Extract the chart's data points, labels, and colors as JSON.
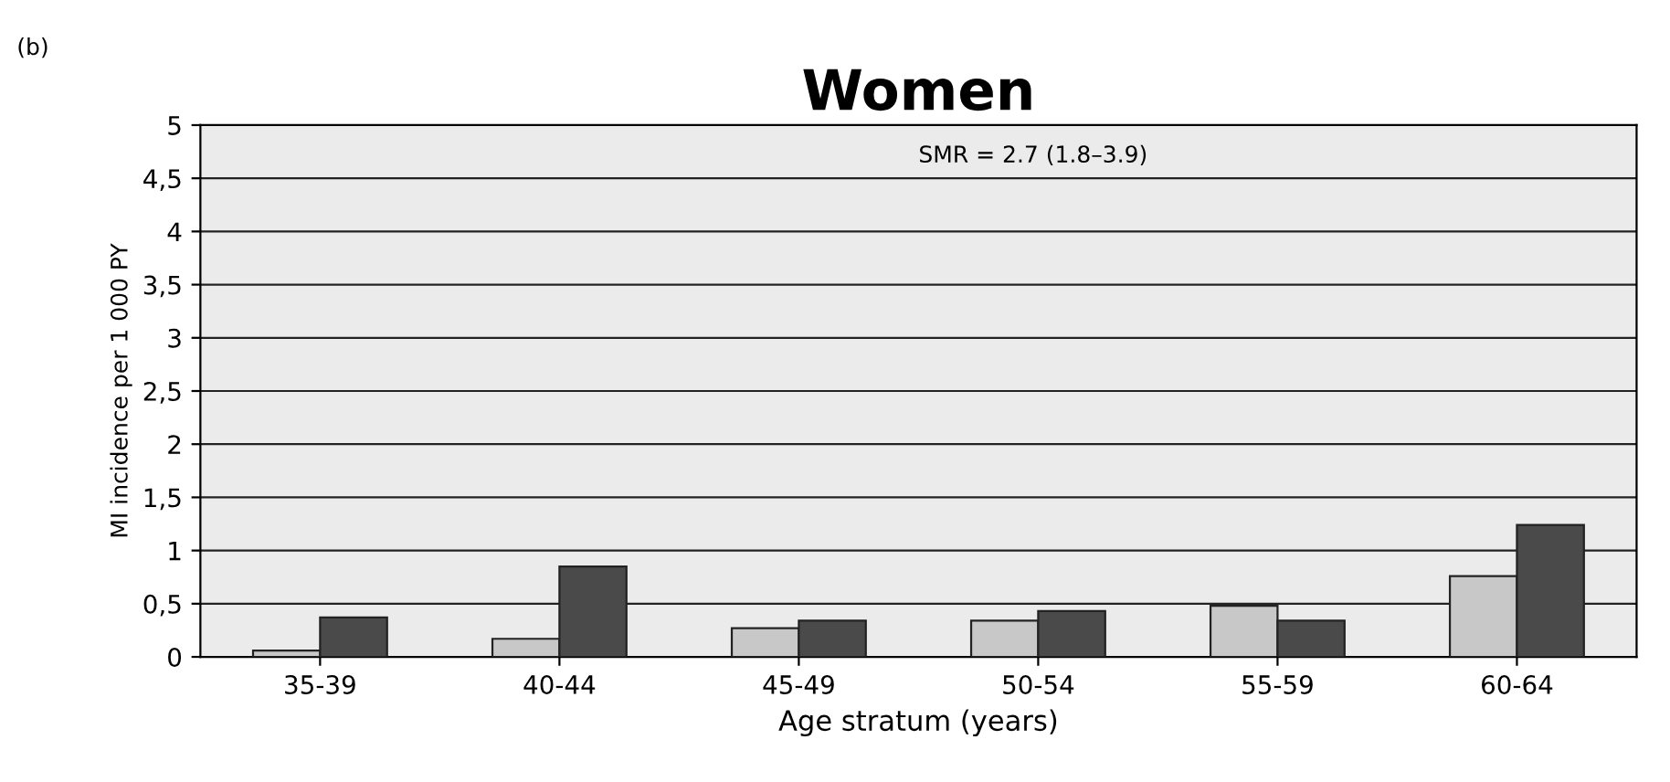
{
  "chart_data": {
    "type": "bar",
    "title": "Women",
    "xlabel": "Age stratum (years)",
    "ylabel": "MI incidence per 1 000 PY",
    "annotations": [
      "(b)",
      "SMR = 2.7 (1.8–3.9)"
    ],
    "categories": [
      "35-39",
      "40-44",
      "45-49",
      "50-54",
      "55-59",
      "60-64"
    ],
    "series": [
      {
        "color": "#c8c8c8",
        "values": [
          0.06,
          0.17,
          0.27,
          0.34,
          0.48,
          0.76
        ]
      },
      {
        "color": "#4a4a4a",
        "values": [
          0.37,
          0.85,
          0.34,
          0.43,
          0.34,
          1.24
        ]
      }
    ],
    "ylim": [
      0,
      5
    ],
    "yticks": [
      0,
      {
        "value": 0.5,
        "label": "0,5"
      },
      1,
      {
        "value": 1.5,
        "label": "1,5"
      },
      2,
      {
        "value": 2.5,
        "label": "2,5"
      },
      3,
      {
        "value": 3.5,
        "label": "3,5"
      },
      4,
      {
        "value": 4.5,
        "label": "4,5"
      },
      5
    ],
    "grid": "y",
    "legend": false
  }
}
